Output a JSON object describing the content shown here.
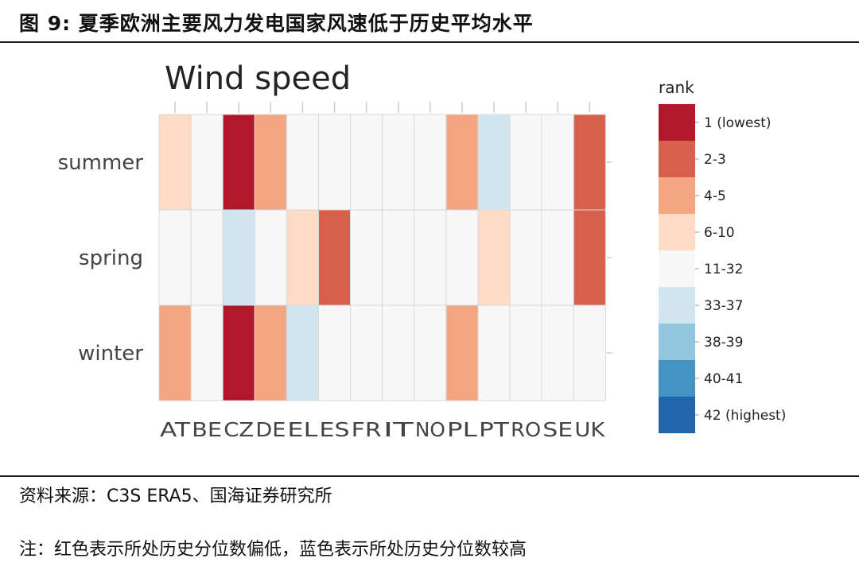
{
  "figure": {
    "title": "图 9:  夏季欧洲主要风力发电国家风速低于历史平均水平",
    "source": "资料来源：C3S ERA5、国海证券研究所",
    "note": "注：红色表示所处历史分位数偏低，蓝色表示所处历史分位数较高"
  },
  "chart_data": {
    "type": "heatmap",
    "title": "Wind speed",
    "x_categories": [
      "AT",
      "BE",
      "CZ",
      "DE",
      "EL",
      "ES",
      "FR",
      "IT",
      "NO",
      "PL",
      "PT",
      "RO",
      "SE",
      "UK"
    ],
    "y_categories": [
      "summer",
      "spring",
      "winter"
    ],
    "legend_title": "rank",
    "legend_bins": [
      {
        "label": "1 (lowest)",
        "color": "#b2182b"
      },
      {
        "label": "2-3",
        "color": "#d6604d"
      },
      {
        "label": "4-5",
        "color": "#f4a582"
      },
      {
        "label": "6-10",
        "color": "#fddbc7"
      },
      {
        "label": "11-32",
        "color": "#f7f7f7"
      },
      {
        "label": "33-37",
        "color": "#d1e5f0"
      },
      {
        "label": "38-39",
        "color": "#92c5de"
      },
      {
        "label": "40-41",
        "color": "#4393c3"
      },
      {
        "label": "42 (highest)",
        "color": "#2166ac"
      }
    ],
    "cells": [
      [
        "6-10",
        "11-32",
        "1 (lowest)",
        "4-5",
        "11-32",
        "11-32",
        "11-32",
        "11-32",
        "11-32",
        "4-5",
        "33-37",
        "11-32",
        "11-32",
        "2-3"
      ],
      [
        "11-32",
        "11-32",
        "33-37",
        "11-32",
        "6-10",
        "2-3",
        "11-32",
        "11-32",
        "11-32",
        "11-32",
        "6-10",
        "11-32",
        "11-32",
        "2-3"
      ],
      [
        "4-5",
        "11-32",
        "1 (lowest)",
        "4-5",
        "33-37",
        "11-32",
        "11-32",
        "11-32",
        "11-32",
        "4-5",
        "11-32",
        "11-32",
        "11-32",
        "11-32"
      ]
    ],
    "grid": true,
    "legend_position": "right"
  }
}
